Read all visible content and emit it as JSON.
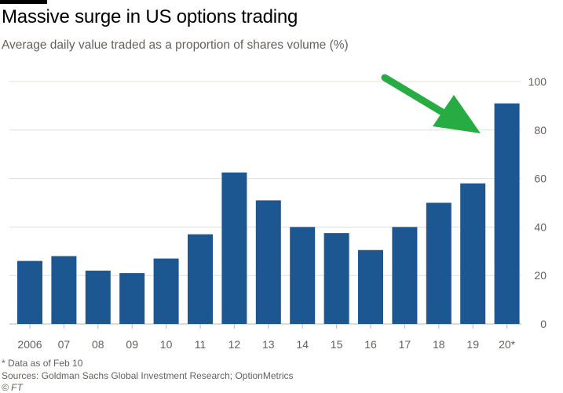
{
  "header": {
    "title": "Massive surge in US options trading",
    "subtitle": "Average daily value traded as a proportion of shares volume (%)"
  },
  "footer": {
    "note": "* Data as of Feb 10",
    "sources": "Sources: Goldman Sachs Global Investment Research; OptionMetrics",
    "credit": "© FT"
  },
  "colors": {
    "bar": "#1d5791",
    "arrow": "#26ac43",
    "grid": "#e6dcd2",
    "axis_text": "#66605c"
  },
  "chart_data": {
    "type": "bar",
    "title": "Massive surge in US options trading",
    "subtitle": "Average daily value traded as a proportion of shares volume (%)",
    "categories": [
      "2006",
      "07",
      "08",
      "09",
      "10",
      "11",
      "12",
      "13",
      "14",
      "15",
      "16",
      "17",
      "18",
      "19",
      "20*"
    ],
    "values": [
      26,
      28,
      22,
      21,
      27,
      37,
      62.5,
      51,
      40,
      37.5,
      30.5,
      40,
      50,
      58,
      91
    ],
    "ylim": [
      0,
      100
    ],
    "yticks": [
      0,
      20,
      40,
      60,
      80,
      100
    ],
    "y_axis_side": "right",
    "grid": true,
    "annotation": "green arrow pointing to the 20* bar"
  }
}
